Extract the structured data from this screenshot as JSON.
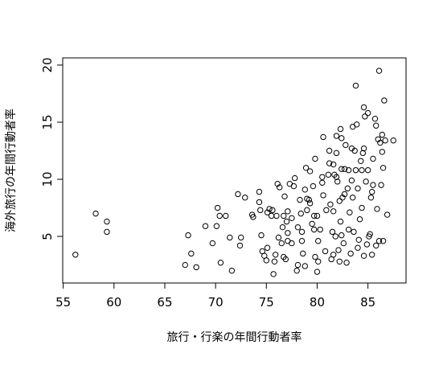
{
  "chart_data": {
    "type": "scatter",
    "x_label": "旅行・行楽の年間行動者率",
    "y_label": "海外旅行の年間行動者率",
    "color": "#000000",
    "xlim": [
      54.95,
      88.75
    ],
    "ylim": [
      0.92,
      20.63
    ],
    "xticks": [
      55,
      60,
      65,
      70,
      75,
      80,
      85
    ],
    "yticks": [
      5,
      10,
      15,
      20
    ],
    "x": [
      56.2,
      58.2,
      59.3,
      59.3,
      67.0,
      67.3,
      67.6,
      68.1,
      69.0,
      69.7,
      70.1,
      70.2,
      70.4,
      70.5,
      71.0,
      71.4,
      71.6,
      72.2,
      72.4,
      72.5,
      72.9,
      73.6,
      73.7,
      74.3,
      74.3,
      74.4,
      74.5,
      74.6,
      74.8,
      75.0,
      75.1,
      75.1,
      75.3,
      75.5,
      75.6,
      75.7,
      75.8,
      75.9,
      76.0,
      76.1,
      76.2,
      76.3,
      76.5,
      76.6,
      76.7,
      76.7,
      76.8,
      76.9,
      77.0,
      77.1,
      77.1,
      77.1,
      77.3,
      77.5,
      77.5,
      77.7,
      77.8,
      78.0,
      78.1,
      78.1,
      78.3,
      78.4,
      78.5,
      78.5,
      78.6,
      78.8,
      78.8,
      78.9,
      79.0,
      79.0,
      79.2,
      79.3,
      79.3,
      79.5,
      79.6,
      79.7,
      79.7,
      79.8,
      79.8,
      80.0,
      80.0,
      80.1,
      80.1,
      80.3,
      80.5,
      80.5,
      80.6,
      80.6,
      80.8,
      80.9,
      81.1,
      81.2,
      81.2,
      81.3,
      81.4,
      81.5,
      81.6,
      81.6,
      81.6,
      81.7,
      81.8,
      81.9,
      81.9,
      81.9,
      82.0,
      82.1,
      82.2,
      82.2,
      82.3,
      82.3,
      82.4,
      82.4,
      82.4,
      82.5,
      82.6,
      82.7,
      82.7,
      82.8,
      82.9,
      83.0,
      83.1,
      83.1,
      83.2,
      83.3,
      83.4,
      83.4,
      83.5,
      83.5,
      83.6,
      83.7,
      83.8,
      83.8,
      83.9,
      84.0,
      84.0,
      84.1,
      84.2,
      84.3,
      84.4,
      84.4,
      84.5,
      84.6,
      84.6,
      84.6,
      84.7,
      84.8,
      84.9,
      85.0,
      85.0,
      85.1,
      85.2,
      85.3,
      85.4,
      85.4,
      85.5,
      85.5,
      85.7,
      85.8,
      85.8,
      85.9,
      86.0,
      86.1,
      86.1,
      86.2,
      86.3,
      86.4,
      86.4,
      86.5,
      86.5,
      86.6,
      86.7,
      86.9,
      87.5
    ],
    "y": [
      3.4,
      7.0,
      6.3,
      5.4,
      2.5,
      5.1,
      3.5,
      2.3,
      5.9,
      4.4,
      5.9,
      7.5,
      6.8,
      2.7,
      6.8,
      4.9,
      2.0,
      8.7,
      4.2,
      4.9,
      8.4,
      6.9,
      6.7,
      8.9,
      8.0,
      7.3,
      5.1,
      3.7,
      3.3,
      2.9,
      4.0,
      7.1,
      7.4,
      6.8,
      7.3,
      1.7,
      2.8,
      3.4,
      6.8,
      9.6,
      4.9,
      9.3,
      4.4,
      5.8,
      3.2,
      6.8,
      8.5,
      3.0,
      6.3,
      5.3,
      4.6,
      7.2,
      9.6,
      6.6,
      4.4,
      9.4,
      10.1,
      2.0,
      5.8,
      2.5,
      8.2,
      7.0,
      4.6,
      5.4,
      3.5,
      2.4,
      9.1,
      11.0,
      8.3,
      7.3,
      8.2,
      10.7,
      7.9,
      6.1,
      9.4,
      5.6,
      6.8,
      11.8,
      3.2,
      1.9,
      6.8,
      2.8,
      4.6,
      5.6,
      9.7,
      10.2,
      13.7,
      8.6,
      3.7,
      7.3,
      10.4,
      11.4,
      12.5,
      7.8,
      3.0,
      5.4,
      11.3,
      3.4,
      7.2,
      10.4,
      5.0,
      13.8,
      10.2,
      12.3,
      9.8,
      3.8,
      8.1,
      2.8,
      14.4,
      6.3,
      10.9,
      13.6,
      5.1,
      8.4,
      4.4,
      10.9,
      8.7,
      13.0,
      2.7,
      9.2,
      5.6,
      10.8,
      7.1,
      3.5,
      12.7,
      9.9,
      8.4,
      14.6,
      5.4,
      12.5,
      18.2,
      10.8,
      14.8,
      9.2,
      4.0,
      4.7,
      6.5,
      11.6,
      10.8,
      7.5,
      12.3,
      16.3,
      3.3,
      12.7,
      15.5,
      9.8,
      4.3,
      15.8,
      10.8,
      5.0,
      5.2,
      8.4,
      3.4,
      8.9,
      9.5,
      11.8,
      15.3,
      14.7,
      4.2,
      7.4,
      13.5,
      4.6,
      19.5,
      13.2,
      9.5,
      13.9,
      12.4,
      4.6,
      11.0,
      16.9,
      13.4,
      6.9,
      13.4
    ]
  }
}
